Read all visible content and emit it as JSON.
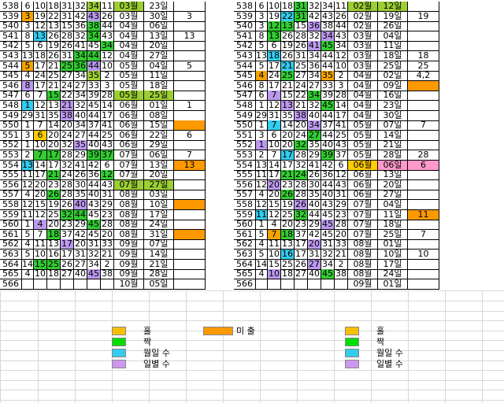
{
  "colors": {
    "odd": "#f5a300",
    "even": "#d7d7d7",
    "g1": "#33cc33",
    "g2": "#9ccf33",
    "cyan": "#33ccee",
    "violet": "#bb99ee",
    "orange": "#ff9900",
    "pink": "#ff99cc",
    "yellow": "#ffcc00"
  },
  "left_rows": [
    {
      "no": "538",
      "n": [
        "6",
        "10",
        "18",
        "31",
        "32",
        "34"
      ],
      "b": "11",
      "date": "03월",
      "day": "23일",
      "extra": ""
    },
    {
      "no": "539",
      "n": [
        "3",
        "19",
        "22",
        "31",
        "42",
        "43"
      ],
      "b": "26",
      "date": "03월",
      "day": "30일",
      "extra": "3"
    },
    {
      "no": "540",
      "n": [
        "3",
        "12",
        "13",
        "15",
        "36",
        "38"
      ],
      "b": "44",
      "date": "04월",
      "day": "06일",
      "extra": ""
    },
    {
      "no": "541",
      "n": [
        "8",
        "13",
        "26",
        "28",
        "32",
        "34"
      ],
      "b": "43",
      "date": "04월",
      "day": "13일",
      "extra": "13"
    },
    {
      "no": "542",
      "n": [
        "5",
        "6",
        "19",
        "26",
        "41",
        "45"
      ],
      "b": "34",
      "date": "04월",
      "day": "20일",
      "extra": ""
    },
    {
      "no": "543",
      "n": [
        "13",
        "18",
        "26",
        "31",
        "34",
        "44"
      ],
      "b": "12",
      "date": "04월",
      "day": "27일",
      "extra": ""
    },
    {
      "no": "544",
      "n": [
        "5",
        "17",
        "21",
        "25",
        "36",
        "44"
      ],
      "b": "10",
      "date": "05월",
      "day": "04일",
      "extra": "5"
    },
    {
      "no": "545",
      "n": [
        "4",
        "24",
        "25",
        "27",
        "34",
        "35"
      ],
      "b": "2",
      "date": "05월",
      "day": "11일",
      "extra": ""
    },
    {
      "no": "546",
      "n": [
        "8",
        "17",
        "21",
        "24",
        "27",
        "33"
      ],
      "b": "3",
      "date": "05월",
      "day": "18일",
      "extra": ""
    },
    {
      "no": "547",
      "n": [
        "6",
        "7",
        "15",
        "22",
        "34",
        "39"
      ],
      "b": "28",
      "date": "05월",
      "day": "25일",
      "extra": ""
    },
    {
      "no": "548",
      "n": [
        "1",
        "12",
        "13",
        "21",
        "32",
        "45"
      ],
      "b": "14",
      "date": "06월",
      "day": "01일",
      "extra": "1"
    },
    {
      "no": "549",
      "n": [
        "29",
        "31",
        "35",
        "38",
        "40",
        "44"
      ],
      "b": "17",
      "date": "06월",
      "day": "08일",
      "extra": ""
    },
    {
      "no": "550",
      "n": [
        "1",
        "7",
        "14",
        "20",
        "34",
        "37"
      ],
      "b": "41",
      "date": "06월",
      "day": "15일",
      "extra": ""
    },
    {
      "no": "551",
      "n": [
        "3",
        "6",
        "20",
        "24",
        "27",
        "44"
      ],
      "b": "25",
      "date": "06월",
      "day": "22일",
      "extra": "6"
    },
    {
      "no": "552",
      "n": [
        "1",
        "10",
        "20",
        "32",
        "35",
        "40"
      ],
      "b": "43",
      "date": "06월",
      "day": "29일",
      "extra": ""
    },
    {
      "no": "553",
      "n": [
        "2",
        "7",
        "17",
        "28",
        "29",
        "39"
      ],
      "b": "37",
      "date": "07월",
      "day": "06일",
      "extra": "7"
    },
    {
      "no": "554",
      "n": [
        "13",
        "14",
        "17",
        "32",
        "41",
        "42"
      ],
      "b": "6",
      "date": "07월",
      "day": "13일",
      "extra": "13"
    },
    {
      "no": "555",
      "n": [
        "11",
        "17",
        "21",
        "24",
        "26",
        "36"
      ],
      "b": "12",
      "date": "07월",
      "day": "20일",
      "extra": ""
    },
    {
      "no": "556",
      "n": [
        "12",
        "20",
        "23",
        "28",
        "30",
        "44"
      ],
      "b": "43",
      "date": "07월",
      "day": "27일",
      "extra": ""
    },
    {
      "no": "557",
      "n": [
        "4",
        "20",
        "26",
        "28",
        "35",
        "40"
      ],
      "b": "31",
      "date": "08월",
      "day": "03일",
      "extra": ""
    },
    {
      "no": "558",
      "n": [
        "12",
        "15",
        "19",
        "26",
        "40",
        "43"
      ],
      "b": "29",
      "date": "08월",
      "day": "10일",
      "extra": ""
    },
    {
      "no": "559",
      "n": [
        "11",
        "12",
        "25",
        "32",
        "44",
        "45"
      ],
      "b": "23",
      "date": "08월",
      "day": "17일",
      "extra": ""
    },
    {
      "no": "560",
      "n": [
        "1",
        "4",
        "20",
        "23",
        "29",
        "45"
      ],
      "b": "28",
      "date": "08월",
      "day": "24일",
      "extra": ""
    },
    {
      "no": "561",
      "n": [
        "5",
        "7",
        "18",
        "37",
        "42",
        "45"
      ],
      "b": "20",
      "date": "08월",
      "day": "31일",
      "extra": ""
    },
    {
      "no": "562",
      "n": [
        "4",
        "11",
        "13",
        "17",
        "20",
        "31"
      ],
      "b": "33",
      "date": "09월",
      "day": "07일",
      "extra": ""
    },
    {
      "no": "563",
      "n": [
        "5",
        "10",
        "16",
        "17",
        "31",
        "32"
      ],
      "b": "21",
      "date": "09월",
      "day": "14일",
      "extra": ""
    },
    {
      "no": "564",
      "n": [
        "14",
        "15",
        "25",
        "26",
        "27",
        "34"
      ],
      "b": "2",
      "date": "09월",
      "day": "21일",
      "extra": ""
    },
    {
      "no": "565",
      "n": [
        "4",
        "10",
        "18",
        "27",
        "40",
        "45"
      ],
      "b": "38",
      "date": "09월",
      "day": "28일",
      "extra": ""
    },
    {
      "no": "566",
      "n": [
        "",
        "",
        "",
        "",
        "",
        "",
        ""
      ],
      "b": "",
      "date": "10월",
      "day": "05일",
      "extra": ""
    }
  ],
  "right_rows": [
    {
      "no": "538",
      "n": [
        "6",
        "10",
        "18",
        "31",
        "32",
        "34"
      ],
      "b": "11",
      "date": "02월",
      "day": "12일",
      "extra": ""
    },
    {
      "no": "539",
      "n": [
        "3",
        "19",
        "22",
        "31",
        "42",
        "43"
      ],
      "b": "26",
      "date": "02월",
      "day": "19일",
      "extra": "19"
    },
    {
      "no": "540",
      "n": [
        "3",
        "12",
        "13",
        "15",
        "36",
        "38"
      ],
      "b": "44",
      "date": "02월",
      "day": "26일",
      "extra": ""
    },
    {
      "no": "541",
      "n": [
        "8",
        "13",
        "26",
        "28",
        "32",
        "34"
      ],
      "b": "43",
      "date": "03월",
      "day": "04일",
      "extra": ""
    },
    {
      "no": "542",
      "n": [
        "5",
        "6",
        "19",
        "26",
        "41",
        "45"
      ],
      "b": "34",
      "date": "03월",
      "day": "11일",
      "extra": ""
    },
    {
      "no": "543",
      "n": [
        "13",
        "18",
        "26",
        "31",
        "34",
        "44"
      ],
      "b": "12",
      "date": "03월",
      "day": "18일",
      "extra": "18"
    },
    {
      "no": "544",
      "n": [
        "5",
        "17",
        "21",
        "25",
        "36",
        "44"
      ],
      "b": "10",
      "date": "03월",
      "day": "25일",
      "extra": "25"
    },
    {
      "no": "545",
      "n": [
        "4",
        "24",
        "25",
        "27",
        "34",
        "35"
      ],
      "b": "2",
      "date": "04월",
      "day": "02일",
      "extra": "4,2"
    },
    {
      "no": "546",
      "n": [
        "8",
        "17",
        "21",
        "24",
        "27",
        "33"
      ],
      "b": "3",
      "date": "04월",
      "day": "09일",
      "extra": ""
    },
    {
      "no": "547",
      "n": [
        "6",
        "7",
        "15",
        "22",
        "34",
        "39"
      ],
      "b": "28",
      "date": "04월",
      "day": "16일",
      "extra": ""
    },
    {
      "no": "548",
      "n": [
        "1",
        "12",
        "13",
        "21",
        "32",
        "45"
      ],
      "b": "14",
      "date": "04월",
      "day": "23일",
      "extra": ""
    },
    {
      "no": "549",
      "n": [
        "29",
        "31",
        "35",
        "38",
        "40",
        "44"
      ],
      "b": "17",
      "date": "04월",
      "day": "30일",
      "extra": ""
    },
    {
      "no": "550",
      "n": [
        "1",
        "7",
        "14",
        "20",
        "34",
        "37"
      ],
      "b": "41",
      "date": "05월",
      "day": "07일",
      "extra": "7"
    },
    {
      "no": "551",
      "n": [
        "3",
        "6",
        "20",
        "24",
        "27",
        "44"
      ],
      "b": "25",
      "date": "05월",
      "day": "14일",
      "extra": ""
    },
    {
      "no": "552",
      "n": [
        "1",
        "10",
        "20",
        "32",
        "35",
        "40"
      ],
      "b": "43",
      "date": "05월",
      "day": "21일",
      "extra": ""
    },
    {
      "no": "553",
      "n": [
        "2",
        "7",
        "17",
        "28",
        "29",
        "39"
      ],
      "b": "37",
      "date": "05월",
      "day": "28일",
      "extra": "28"
    },
    {
      "no": "554",
      "n": [
        "13",
        "14",
        "17",
        "32",
        "41",
        "42"
      ],
      "b": "6",
      "date": "06월",
      "day": "06일",
      "extra": "6"
    },
    {
      "no": "555",
      "n": [
        "11",
        "17",
        "21",
        "24",
        "26",
        "36"
      ],
      "b": "12",
      "date": "06월",
      "day": "13일",
      "extra": ""
    },
    {
      "no": "556",
      "n": [
        "12",
        "20",
        "23",
        "28",
        "30",
        "44"
      ],
      "b": "43",
      "date": "06월",
      "day": "20일",
      "extra": ""
    },
    {
      "no": "557",
      "n": [
        "4",
        "20",
        "26",
        "28",
        "35",
        "40"
      ],
      "b": "31",
      "date": "06월",
      "day": "27일",
      "extra": ""
    },
    {
      "no": "558",
      "n": [
        "12",
        "15",
        "19",
        "26",
        "40",
        "43"
      ],
      "b": "29",
      "date": "07월",
      "day": "04일",
      "extra": ""
    },
    {
      "no": "559",
      "n": [
        "11",
        "12",
        "25",
        "32",
        "44",
        "45"
      ],
      "b": "23",
      "date": "07월",
      "day": "11일",
      "extra": "11"
    },
    {
      "no": "560",
      "n": [
        "1",
        "4",
        "20",
        "23",
        "29",
        "45"
      ],
      "b": "28",
      "date": "07월",
      "day": "18일",
      "extra": ""
    },
    {
      "no": "561",
      "n": [
        "5",
        "7",
        "18",
        "37",
        "42",
        "45"
      ],
      "b": "20",
      "date": "07월",
      "day": "25일",
      "extra": "7"
    },
    {
      "no": "562",
      "n": [
        "4",
        "11",
        "13",
        "17",
        "20",
        "31"
      ],
      "b": "33",
      "date": "08월",
      "day": "01일",
      "extra": ""
    },
    {
      "no": "563",
      "n": [
        "5",
        "10",
        "16",
        "17",
        "31",
        "32"
      ],
      "b": "21",
      "date": "08월",
      "day": "10일",
      "extra": "10"
    },
    {
      "no": "564",
      "n": [
        "14",
        "15",
        "25",
        "26",
        "27",
        "34"
      ],
      "b": "2",
      "date": "08월",
      "day": "17일",
      "extra": ""
    },
    {
      "no": "565",
      "n": [
        "4",
        "10",
        "18",
        "27",
        "40",
        "45"
      ],
      "b": "38",
      "date": "08월",
      "day": "24일",
      "extra": ""
    },
    {
      "no": "566",
      "n": [
        "",
        "",
        "",
        "",
        "",
        "",
        ""
      ],
      "b": "",
      "date": "09월",
      "day": "01일",
      "extra": ""
    }
  ],
  "left_highlights": {
    "538": {
      "6": "g2",
      "8": "g2"
    },
    "539": {
      "1": "odd",
      "6": "violet"
    },
    "540": {
      "6": "g1"
    },
    "541": {
      "2": "cyan",
      "6": "g1"
    },
    "542": {
      "7": "g1"
    },
    "543": {
      "5": "g1",
      "6": "g1"
    },
    "544": {
      "1": "odd",
      "4": "g1",
      "5": "g1",
      "6": "violet"
    },
    "545": {
      "6": "g2"
    },
    "546": {
      "1": "violet"
    },
    "547": {
      "3": "g1",
      "8": "g2",
      "9": "g2"
    },
    "548": {
      "1": "cyan",
      "4": "violet"
    },
    "549": {
      "4": "violet"
    },
    "551": {
      "2": "yellow"
    },
    "552": {
      "5": "violet"
    },
    "553": {
      "2": "g1",
      "3": "g1",
      "6": "g1",
      "7": "g1"
    },
    "554": {
      "1": "cyan"
    },
    "555": {
      "3": "g1",
      "7": "g1"
    },
    "556": {
      "8": "g2",
      "9": "g2"
    },
    "557": {
      "3": "g1"
    },
    "558": {
      "5": "violet"
    },
    "559": {
      "4": "g1",
      "5": "g1"
    },
    "560": {
      "2": "violet",
      "6": "g1"
    },
    "561": {
      "3": "g1"
    },
    "562": {
      "4": "violet"
    },
    "563": {},
    "564": {
      "2": "g1",
      "3": "g1"
    },
    "565": {
      "6": "violet"
    }
  },
  "right_highlights": {
    "538": {
      "4": "g1",
      "8": "g2",
      "9": "g2"
    },
    "539": {
      "3": "cyan",
      "4": "g1"
    },
    "540": {
      "2": "g1",
      "3": "g1",
      "5": "violet"
    },
    "541": {
      "2": "g1",
      "6": "violet"
    },
    "542": {
      "5": "violet",
      "6": "g1"
    },
    "543": {
      "2": "cyan"
    },
    "544": {
      "3": "cyan"
    },
    "545": {
      "1": "odd",
      "3": "g1",
      "6": "odd"
    },
    "546": {},
    "547": {
      "2": "violet",
      "5": "g1"
    },
    "548": {
      "3": "violet",
      "6": "g1"
    },
    "549": {
      "4": "violet"
    },
    "550": {
      "2": "cyan",
      "5": "violet"
    },
    "551": {
      "5": "g1"
    },
    "552": {
      "1": "violet",
      "4": "g1"
    },
    "553": {
      "3": "cyan",
      "6": "g1"
    },
    "554": {
      "8": "yellow",
      "9": "pink",
      "10": "pink"
    },
    "555": {
      "3": "g1",
      "4": "g1"
    },
    "556": {
      "2": "violet"
    },
    "557": {
      "3": "g1"
    },
    "558": {
      "4": "violet"
    },
    "559": {
      "1": "cyan",
      "4": "g1"
    },
    "560": {
      "6": "violet"
    },
    "561": {
      "2": "odd",
      "3": "g1"
    },
    "562": {
      "5": "violet"
    },
    "563": {
      "3": "cyan"
    },
    "564": {
      "5": "violet"
    },
    "565": {
      "2": "violet",
      "6": "g1"
    }
  },
  "left_extra_orange": [
    "550",
    "554",
    "558",
    "561"
  ],
  "right_extra_orange": [
    "546",
    "559"
  ],
  "legend": {
    "left": [
      {
        "label": "홀",
        "color": "#f5c000"
      },
      {
        "label": "짝",
        "color": "#00dd00"
      },
      {
        "label": "월일 수",
        "color": "#33ccee"
      },
      {
        "label": "일별 수",
        "color": "#cc99ee"
      }
    ],
    "center": {
      "label": "미 출",
      "color": "#ff9900"
    },
    "right": [
      {
        "label": "홀",
        "color": "#f5c000"
      },
      {
        "label": "짝",
        "color": "#00dd00"
      },
      {
        "label": "월일 수",
        "color": "#33ccee"
      },
      {
        "label": "일별 수",
        "color": "#cc99ee"
      }
    ]
  }
}
